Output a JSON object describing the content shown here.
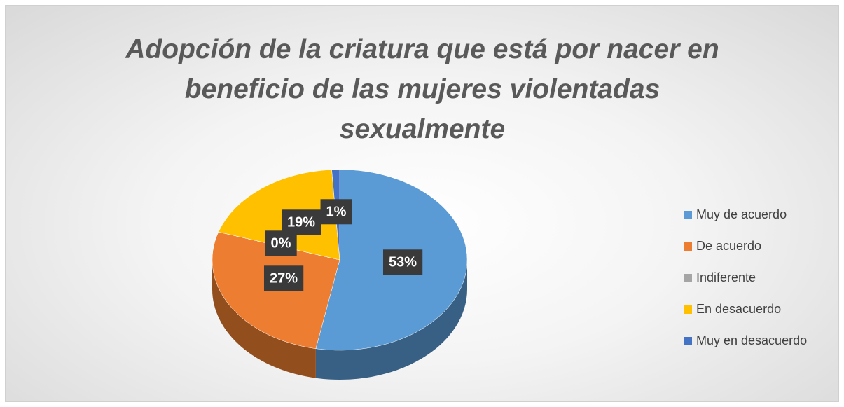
{
  "chart_data": {
    "type": "pie",
    "title": "Adopción de la criatura que está por nacer en beneficio de las mujeres violentadas sexualmente",
    "categories": [
      "Muy de acuerdo",
      "De acuerdo",
      "Indiferente",
      "En desacuerdo",
      "Muy en desacuerdo"
    ],
    "values": [
      53,
      27,
      0,
      19,
      1
    ],
    "value_labels": [
      "53%",
      "27%",
      "0%",
      "19%",
      "1%"
    ],
    "colors": [
      "#5b9bd5",
      "#ed7d31",
      "#a5a5a5",
      "#ffc000",
      "#4472c4"
    ],
    "legend": "right"
  }
}
